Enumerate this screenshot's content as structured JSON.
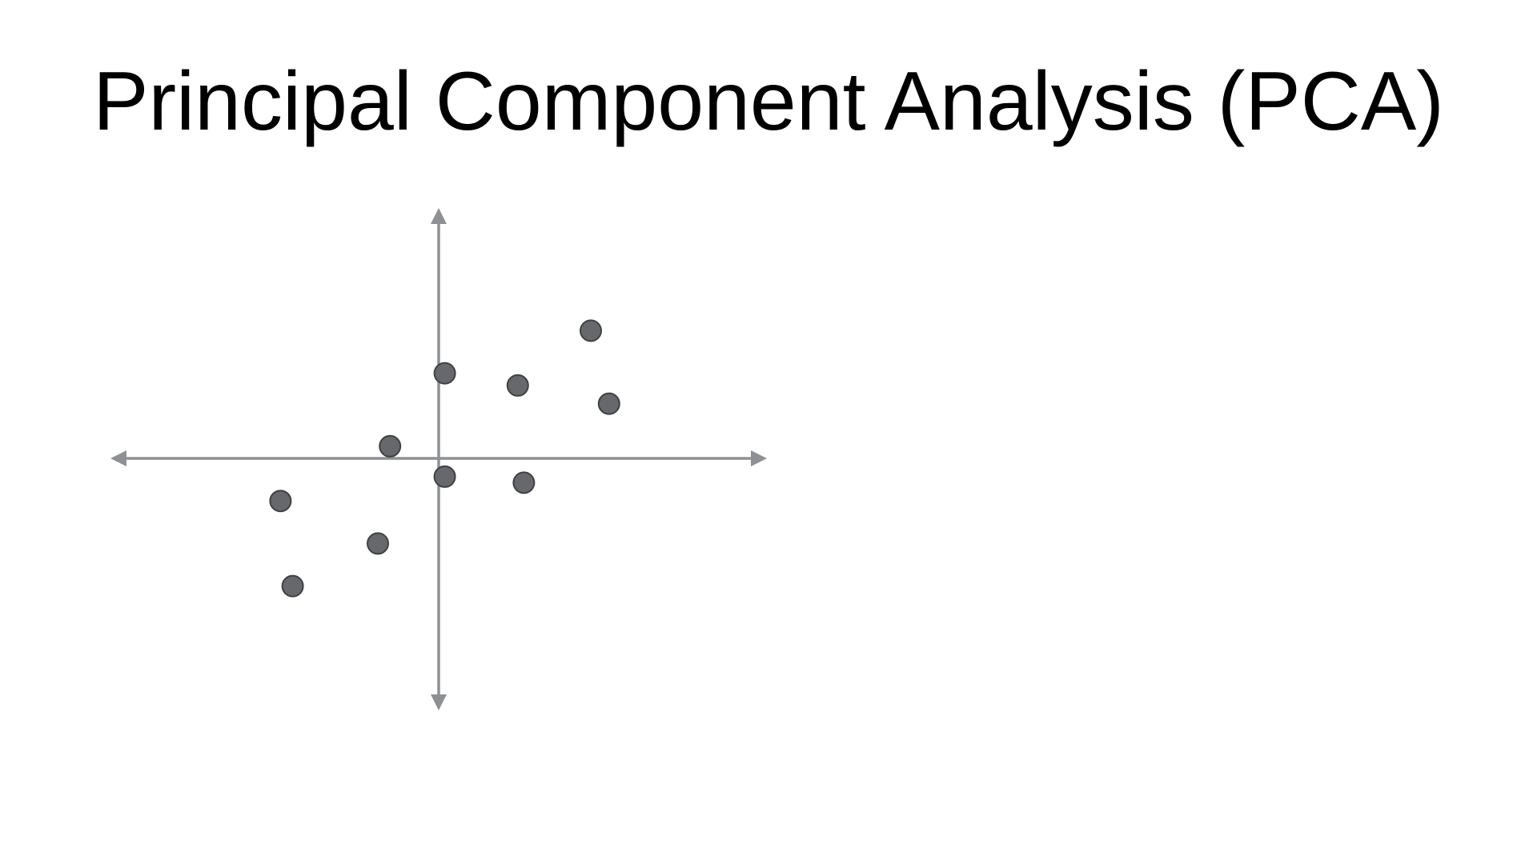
{
  "slide": {
    "title": "Principal Component Analysis (PCA)"
  },
  "colors": {
    "axis": "#8e9194",
    "point_fill": "#66686c",
    "point_stroke": "#3f4145",
    "background": "#ffffff"
  },
  "chart_data": {
    "type": "scatter",
    "title": "",
    "xlabel": "",
    "ylabel": "",
    "xlim": [
      -6,
      6
    ],
    "ylim": [
      -5,
      5
    ],
    "grid": false,
    "axes": "centered-arrows",
    "points": [
      {
        "x": 0.1,
        "y": 1.4
      },
      {
        "x": 1.3,
        "y": 1.2
      },
      {
        "x": 2.5,
        "y": 2.1
      },
      {
        "x": 2.8,
        "y": 0.9
      },
      {
        "x": -0.8,
        "y": 0.2
      },
      {
        "x": 0.1,
        "y": -0.3
      },
      {
        "x": 1.4,
        "y": -0.4
      },
      {
        "x": -2.6,
        "y": -0.7
      },
      {
        "x": -1.0,
        "y": -1.4
      },
      {
        "x": -2.4,
        "y": -2.1
      }
    ]
  }
}
